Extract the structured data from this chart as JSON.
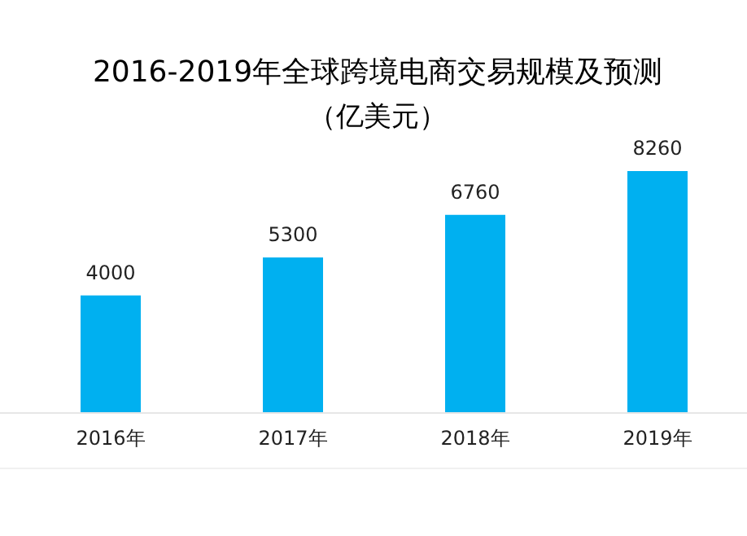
{
  "chart_data": {
    "type": "bar",
    "title": "2016-2019年全球跨境电商交易规模及预测",
    "subtitle": "（亿美元）",
    "categories": [
      "2016年",
      "2017年",
      "2018年",
      "2019年"
    ],
    "values": [
      4000,
      5300,
      6760,
      8260
    ],
    "color": "#00b0f0",
    "data_labels": true
  }
}
